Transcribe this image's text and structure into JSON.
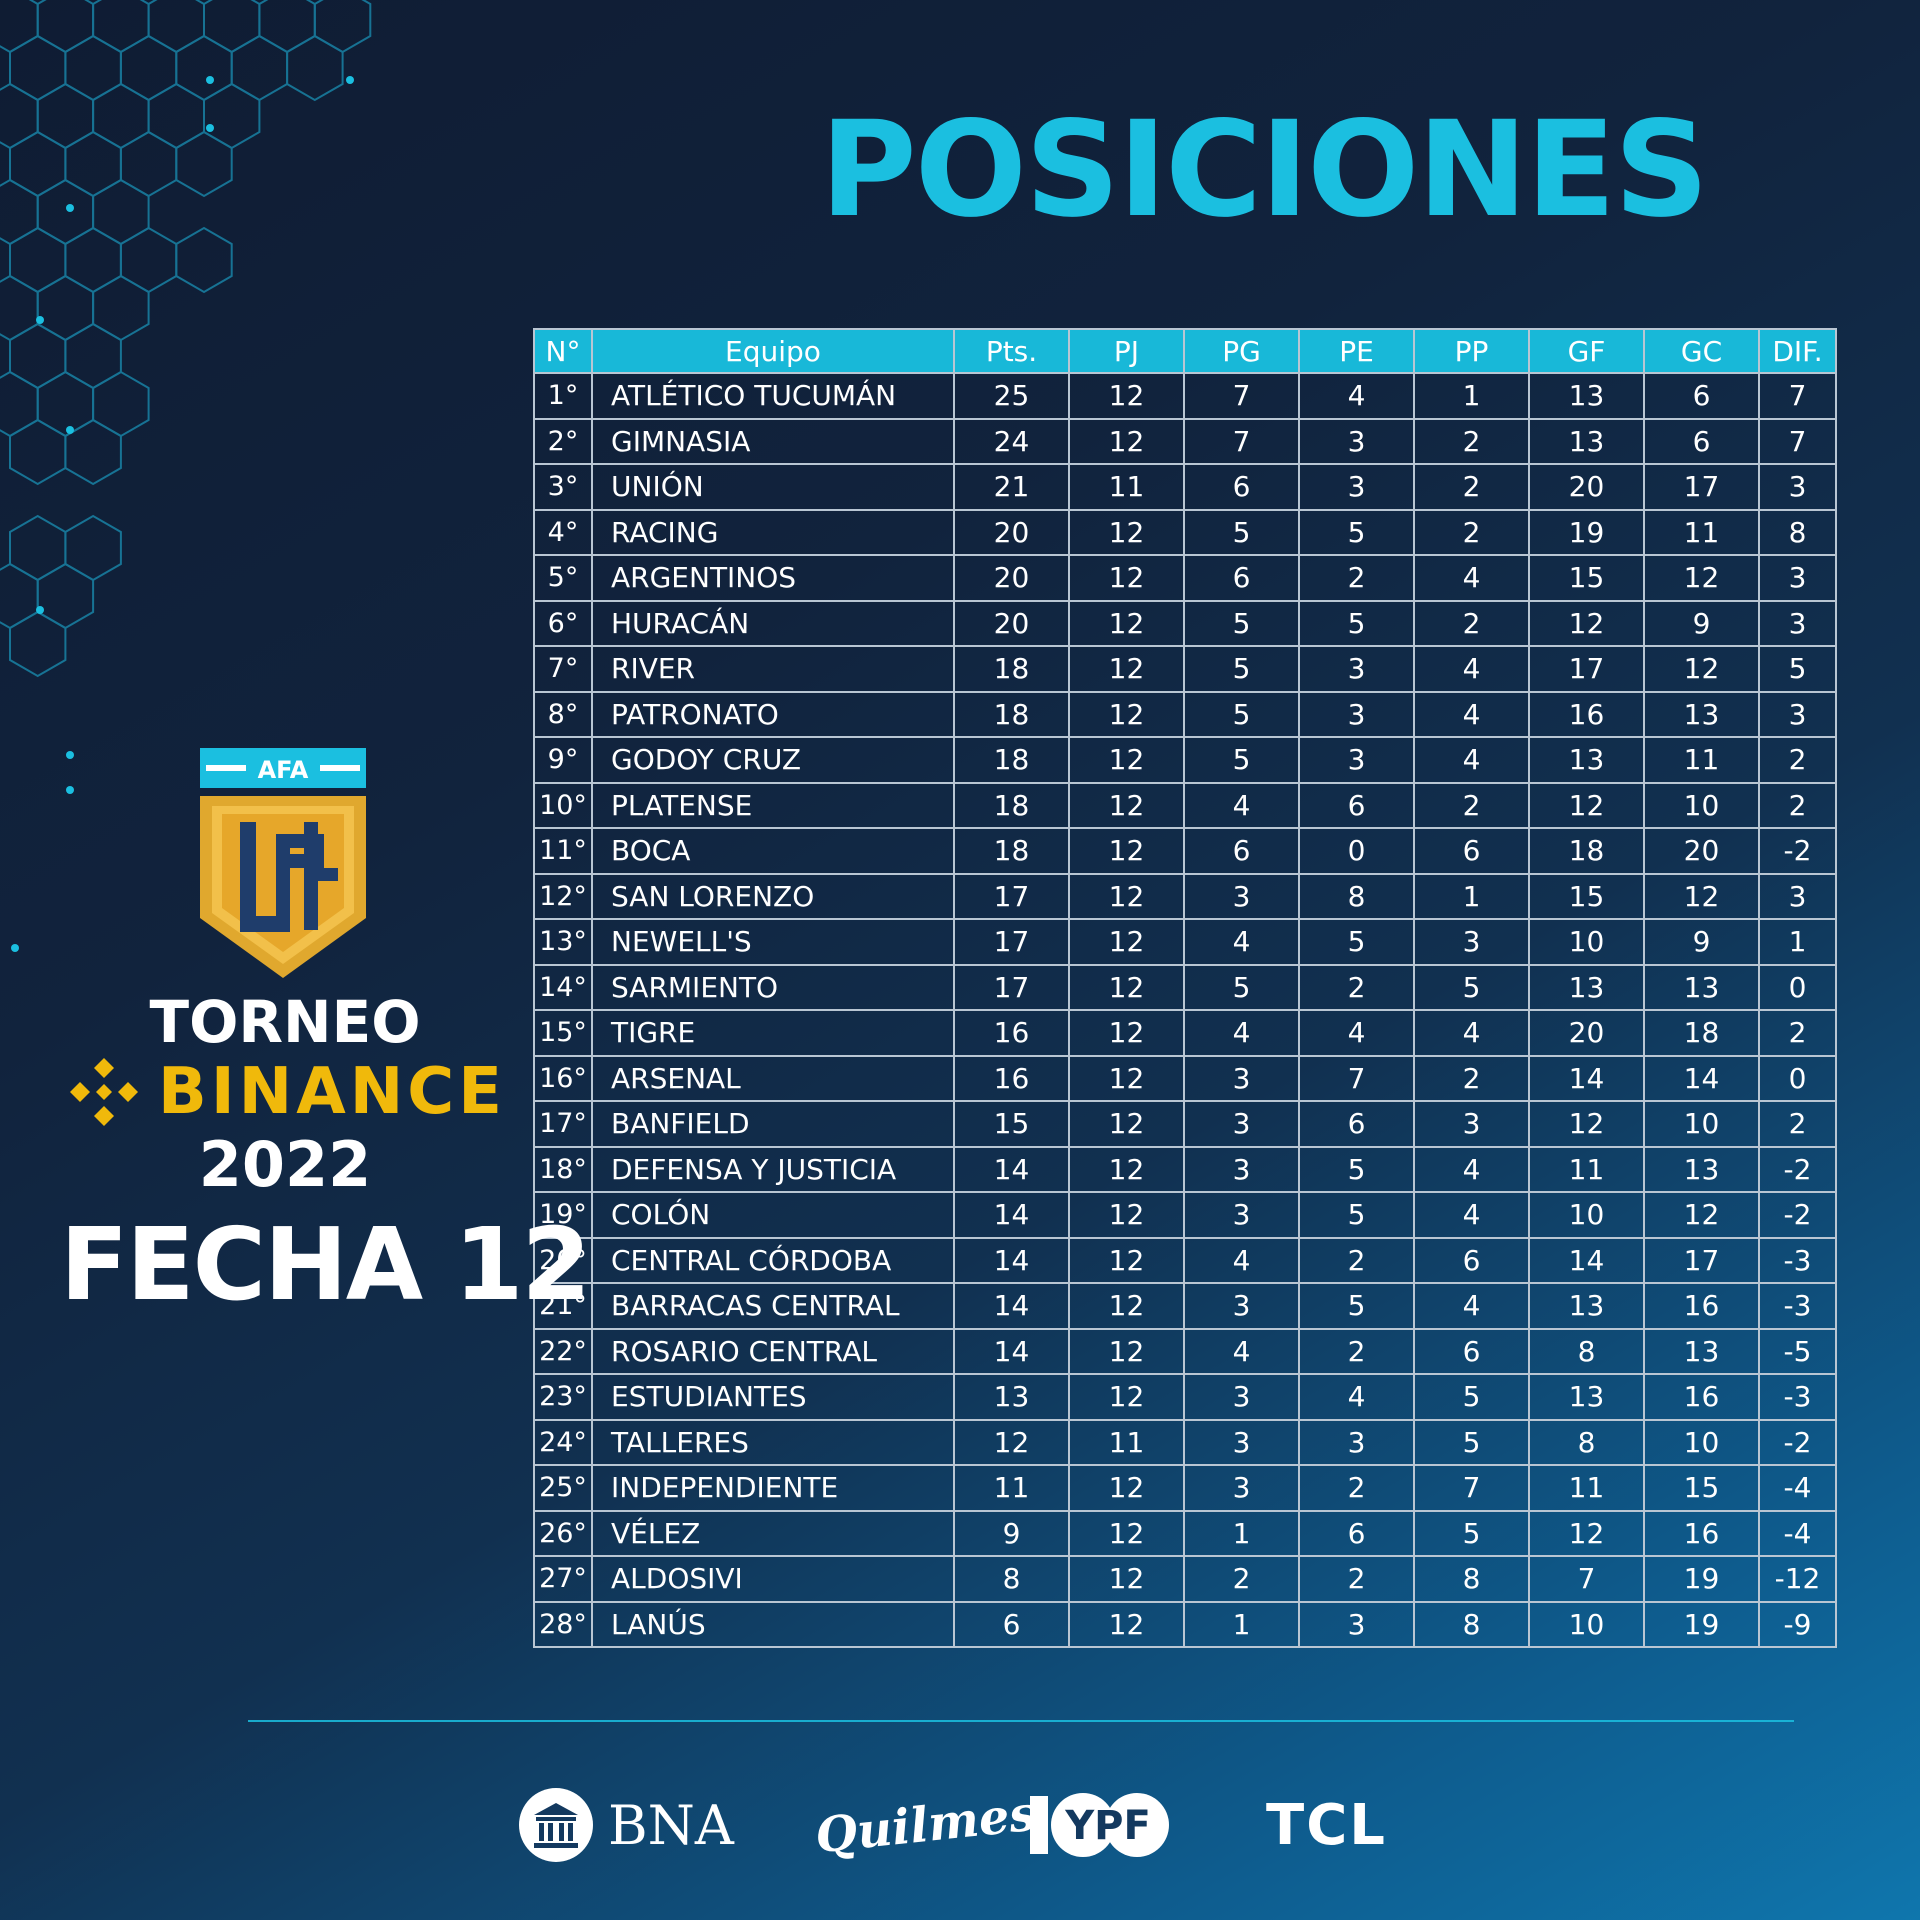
{
  "title": "POSICIONES",
  "table": {
    "headers": [
      "N°",
      "Equipo",
      "Pts.",
      "PJ",
      "PG",
      "PE",
      "PP",
      "GF",
      "GC",
      "DIF."
    ],
    "rows": [
      [
        "1°",
        "ATLÉTICO TUCUMÁN",
        "25",
        "12",
        "7",
        "4",
        "1",
        "13",
        "6",
        "7"
      ],
      [
        "2°",
        "GIMNASIA",
        "24",
        "12",
        "7",
        "3",
        "2",
        "13",
        "6",
        "7"
      ],
      [
        "3°",
        "UNIÓN",
        "21",
        "11",
        "6",
        "3",
        "2",
        "20",
        "17",
        "3"
      ],
      [
        "4°",
        "RACING",
        "20",
        "12",
        "5",
        "5",
        "2",
        "19",
        "11",
        "8"
      ],
      [
        "5°",
        "ARGENTINOS",
        "20",
        "12",
        "6",
        "2",
        "4",
        "15",
        "12",
        "3"
      ],
      [
        "6°",
        "HURACÁN",
        "20",
        "12",
        "5",
        "5",
        "2",
        "12",
        "9",
        "3"
      ],
      [
        "7°",
        "RIVER",
        "18",
        "12",
        "5",
        "3",
        "4",
        "17",
        "12",
        "5"
      ],
      [
        "8°",
        "PATRONATO",
        "18",
        "12",
        "5",
        "3",
        "4",
        "16",
        "13",
        "3"
      ],
      [
        "9°",
        "GODOY CRUZ",
        "18",
        "12",
        "5",
        "3",
        "4",
        "13",
        "11",
        "2"
      ],
      [
        "10°",
        "PLATENSE",
        "18",
        "12",
        "4",
        "6",
        "2",
        "12",
        "10",
        "2"
      ],
      [
        "11°",
        "BOCA",
        "18",
        "12",
        "6",
        "0",
        "6",
        "18",
        "20",
        "-2"
      ],
      [
        "12°",
        "SAN LORENZO",
        "17",
        "12",
        "3",
        "8",
        "1",
        "15",
        "12",
        "3"
      ],
      [
        "13°",
        "NEWELL'S",
        "17",
        "12",
        "4",
        "5",
        "3",
        "10",
        "9",
        "1"
      ],
      [
        "14°",
        "SARMIENTO",
        "17",
        "12",
        "5",
        "2",
        "5",
        "13",
        "13",
        "0"
      ],
      [
        "15°",
        "TIGRE",
        "16",
        "12",
        "4",
        "4",
        "4",
        "20",
        "18",
        "2"
      ],
      [
        "16°",
        "ARSENAL",
        "16",
        "12",
        "3",
        "7",
        "2",
        "14",
        "14",
        "0"
      ],
      [
        "17°",
        "BANFIELD",
        "15",
        "12",
        "3",
        "6",
        "3",
        "12",
        "10",
        "2"
      ],
      [
        "18°",
        "DEFENSA Y JUSTICIA",
        "14",
        "12",
        "3",
        "5",
        "4",
        "11",
        "13",
        "-2"
      ],
      [
        "19°",
        "COLÓN",
        "14",
        "12",
        "3",
        "5",
        "4",
        "10",
        "12",
        "-2"
      ],
      [
        "20°",
        "CENTRAL CÓRDOBA",
        "14",
        "12",
        "4",
        "2",
        "6",
        "14",
        "17",
        "-3"
      ],
      [
        "21°",
        "BARRACAS CENTRAL",
        "14",
        "12",
        "3",
        "5",
        "4",
        "13",
        "16",
        "-3"
      ],
      [
        "22°",
        "ROSARIO CENTRAL",
        "14",
        "12",
        "4",
        "2",
        "6",
        "8",
        "13",
        "-5"
      ],
      [
        "23°",
        "ESTUDIANTES",
        "13",
        "12",
        "3",
        "4",
        "5",
        "13",
        "16",
        "-3"
      ],
      [
        "24°",
        "TALLERES",
        "12",
        "11",
        "3",
        "3",
        "5",
        "8",
        "10",
        "-2"
      ],
      [
        "25°",
        "INDEPENDIENTE",
        "11",
        "12",
        "3",
        "2",
        "7",
        "11",
        "15",
        "-4"
      ],
      [
        "26°",
        "VÉLEZ",
        "9",
        "12",
        "1",
        "6",
        "5",
        "12",
        "16",
        "-4"
      ],
      [
        "27°",
        "ALDOSIVI",
        "8",
        "12",
        "2",
        "2",
        "8",
        "7",
        "19",
        "-12"
      ],
      [
        "28°",
        "LANÚS",
        "6",
        "12",
        "1",
        "3",
        "8",
        "10",
        "19",
        "-9"
      ]
    ]
  },
  "logo": {
    "badge_text": "AFA",
    "monogram": "LPF"
  },
  "tournament": {
    "line1": "TORNEO",
    "brand": "BINANCE",
    "year": "2022"
  },
  "fecha": "FECHA 12",
  "sponsors": {
    "bna": "BNA",
    "quilmes": "Quilmes",
    "ypf": "YPF",
    "tcl": "TCL"
  },
  "colors": {
    "accent": "#1bbfe0",
    "gold": "#f0b90b",
    "logo_gold": "#e0a82e",
    "logo_navy": "#1f3d6b"
  }
}
